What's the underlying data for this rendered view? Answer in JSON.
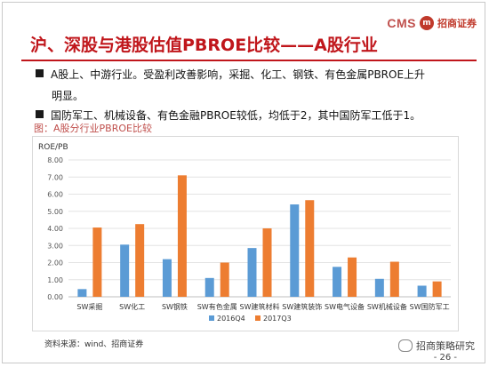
{
  "header": {
    "logo_text": "CMS",
    "logo_mark": "m",
    "logo_cn": "招商证券",
    "title": "沪、深股与港股估值PBROE比较——A股行业"
  },
  "bullets": [
    {
      "line1": "A股上、中游行业。受盈利改善影响，采掘、化工、钢铁、有色金属PBROE上升",
      "line2": "明显。"
    },
    {
      "line1": "国防军工、机械设备、有色金融PBROE较低，均低于2，其中国防军工低于1。"
    }
  ],
  "figure_caption": "图：A股分行业PBROE比较",
  "chart_data": {
    "type": "bar",
    "ylabel": "ROE/PB",
    "ylim": [
      0,
      8
    ],
    "yticks": [
      "0.00",
      "1.00",
      "2.00",
      "3.00",
      "4.00",
      "5.00",
      "6.00",
      "7.00",
      "8.00"
    ],
    "categories": [
      "SW采掘",
      "SW化工",
      "SW钢铁",
      "SW有色金属",
      "SW建筑材料",
      "SW建筑装饰",
      "SW电气设备",
      "SW机械设备",
      "SW国防军工"
    ],
    "series": [
      {
        "name": "2016Q4",
        "color": "#5b9bd5",
        "values": [
          0.45,
          3.05,
          2.2,
          1.1,
          2.85,
          5.4,
          1.75,
          1.05,
          0.65
        ]
      },
      {
        "name": "2017Q3",
        "color": "#ed7d31",
        "values": [
          4.05,
          4.25,
          7.1,
          2.0,
          4.0,
          5.65,
          2.3,
          2.05,
          0.9
        ]
      }
    ],
    "grid": true,
    "legend_position": "bottom"
  },
  "footer": {
    "source": "资料来源：wind、招商证券",
    "watermark": "招商策略研究",
    "page": "- 26 -"
  },
  "colors": {
    "title_red": "#c0161b",
    "caption_red": "#c0504d"
  }
}
